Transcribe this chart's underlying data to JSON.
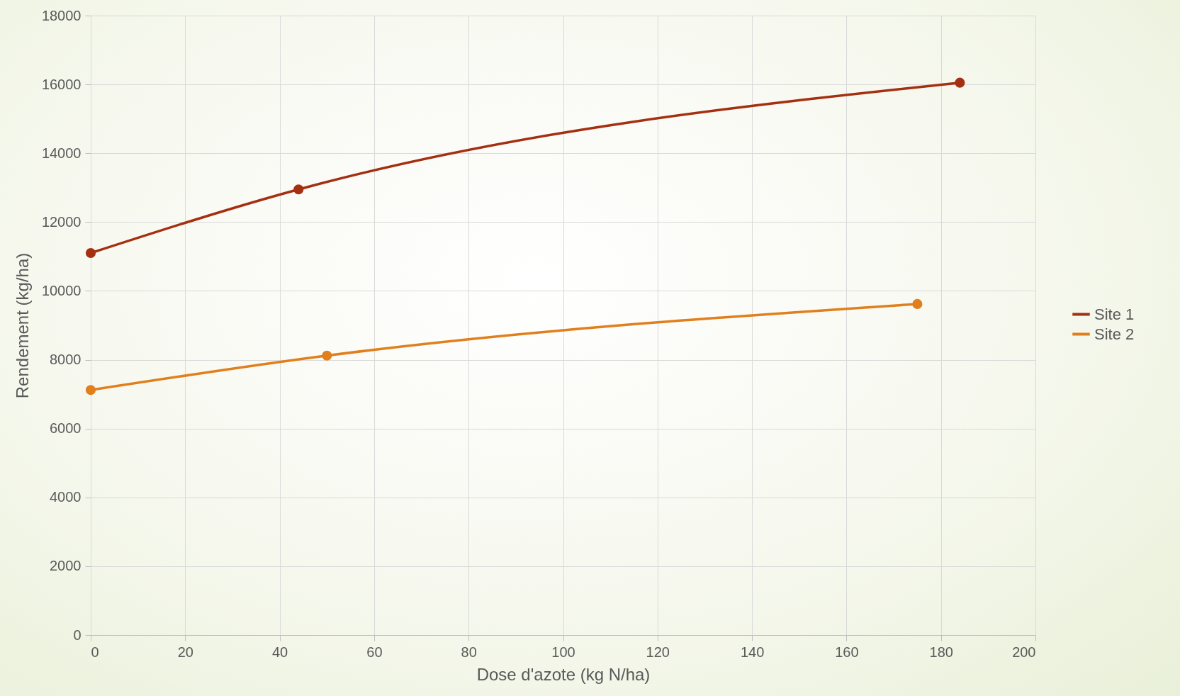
{
  "chart_data": {
    "type": "line",
    "xlabel": "Dose d'azote (kg N/ha)",
    "ylabel": "Rendement (kg/ha)",
    "xlim": [
      0,
      200
    ],
    "xticks": [
      0,
      20,
      40,
      60,
      80,
      100,
      120,
      140,
      160,
      180,
      200
    ],
    "ylim": [
      0,
      18000
    ],
    "yticks": [
      0,
      2000,
      4000,
      6000,
      8000,
      10000,
      12000,
      14000,
      16000,
      18000
    ],
    "grid": true,
    "legend": "right",
    "marker": "circle",
    "line_style": "solid",
    "series": [
      {
        "name": "Site 1",
        "color": "#a52f11",
        "x": [
          0,
          44,
          184
        ],
        "values": [
          11100,
          12950,
          16050
        ]
      },
      {
        "name": "Site 2",
        "color": "#e17f1c",
        "x": [
          0,
          50,
          175
        ],
        "values": [
          7120,
          8120,
          9620
        ]
      }
    ]
  }
}
